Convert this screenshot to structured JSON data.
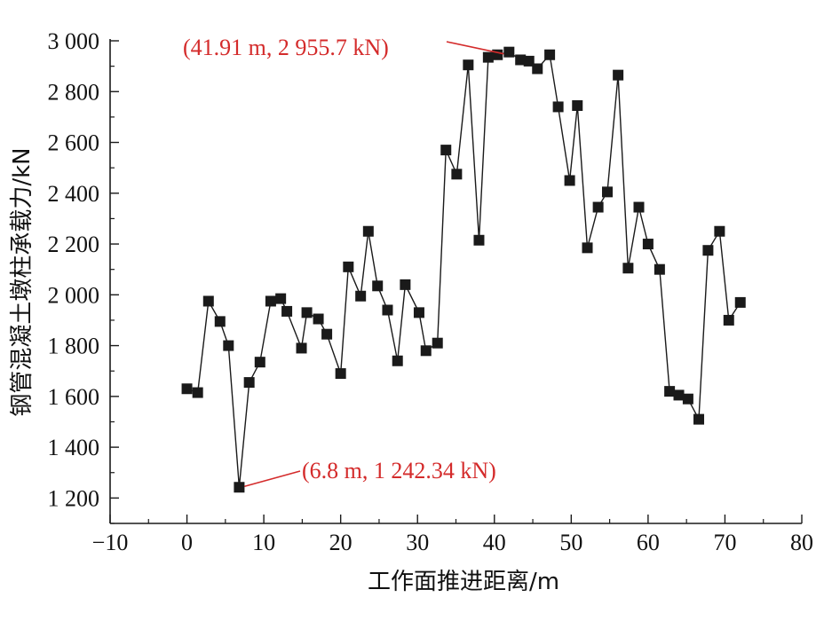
{
  "chart_data": {
    "type": "line",
    "title": "",
    "xlabel": "工作面推进距离/m",
    "ylabel": "钢管混凝土墩柱承载力/kN",
    "xlim": [
      -10,
      80
    ],
    "ylim": [
      1100,
      3000
    ],
    "x_ticks": [
      -10,
      0,
      10,
      20,
      30,
      40,
      50,
      60,
      70,
      80
    ],
    "x_tick_labels": [
      "−10",
      "0",
      "10",
      "20",
      "30",
      "40",
      "50",
      "60",
      "70",
      "80"
    ],
    "y_ticks": [
      1200,
      1400,
      1600,
      1800,
      2000,
      2200,
      2400,
      2600,
      2800,
      3000
    ],
    "y_tick_labels": [
      "1 200",
      "1 400",
      "1 600",
      "1 800",
      "2 000",
      "2 200",
      "2 400",
      "2 600",
      "2 800",
      "3 000"
    ],
    "grid": false,
    "legend": "none",
    "series": [
      {
        "color": "#1a1a1a",
        "marker": "square",
        "points": [
          [
            0.0,
            1630
          ],
          [
            1.4,
            1615
          ],
          [
            2.8,
            1975
          ],
          [
            4.3,
            1895
          ],
          [
            5.4,
            1800
          ],
          [
            6.8,
            1242.34
          ],
          [
            8.1,
            1655
          ],
          [
            9.5,
            1735
          ],
          [
            10.9,
            1975
          ],
          [
            12.2,
            1985
          ],
          [
            13.0,
            1935
          ],
          [
            14.9,
            1790
          ],
          [
            15.6,
            1930
          ],
          [
            17.1,
            1905
          ],
          [
            18.2,
            1845
          ],
          [
            20.0,
            1690
          ],
          [
            21.0,
            2110
          ],
          [
            22.6,
            1995
          ],
          [
            23.6,
            2250
          ],
          [
            24.8,
            2035
          ],
          [
            26.1,
            1940
          ],
          [
            27.4,
            1740
          ],
          [
            28.4,
            2040
          ],
          [
            30.2,
            1930
          ],
          [
            31.1,
            1780
          ],
          [
            32.6,
            1810
          ],
          [
            33.7,
            2570
          ],
          [
            35.1,
            2475
          ],
          [
            36.6,
            2905
          ],
          [
            38.0,
            2215
          ],
          [
            39.2,
            2935
          ],
          [
            40.4,
            2945
          ],
          [
            41.91,
            2955.7
          ],
          [
            43.4,
            2925
          ],
          [
            44.5,
            2920
          ],
          [
            45.6,
            2890
          ],
          [
            47.2,
            2945
          ],
          [
            48.3,
            2740
          ],
          [
            49.8,
            2450
          ],
          [
            50.8,
            2745
          ],
          [
            52.1,
            2185
          ],
          [
            53.5,
            2345
          ],
          [
            54.7,
            2405
          ],
          [
            56.1,
            2865
          ],
          [
            57.4,
            2105
          ],
          [
            58.8,
            2345
          ],
          [
            60.0,
            2200
          ],
          [
            61.5,
            2100
          ],
          [
            62.8,
            1620
          ],
          [
            64.0,
            1605
          ],
          [
            65.2,
            1590
          ],
          [
            66.6,
            1510
          ],
          [
            67.8,
            2175
          ],
          [
            69.3,
            2250
          ],
          [
            70.5,
            1900
          ],
          [
            72.0,
            1970
          ]
        ]
      }
    ],
    "annotations": [
      {
        "text": "(41.91 m, 2 955.7 kN)",
        "x": 41.91,
        "y": 2955.7,
        "color": "#d42b2b"
      },
      {
        "text": "(6.8 m, 1 242.34 kN)",
        "x": 6.8,
        "y": 1242.34,
        "color": "#d42b2b"
      }
    ]
  }
}
